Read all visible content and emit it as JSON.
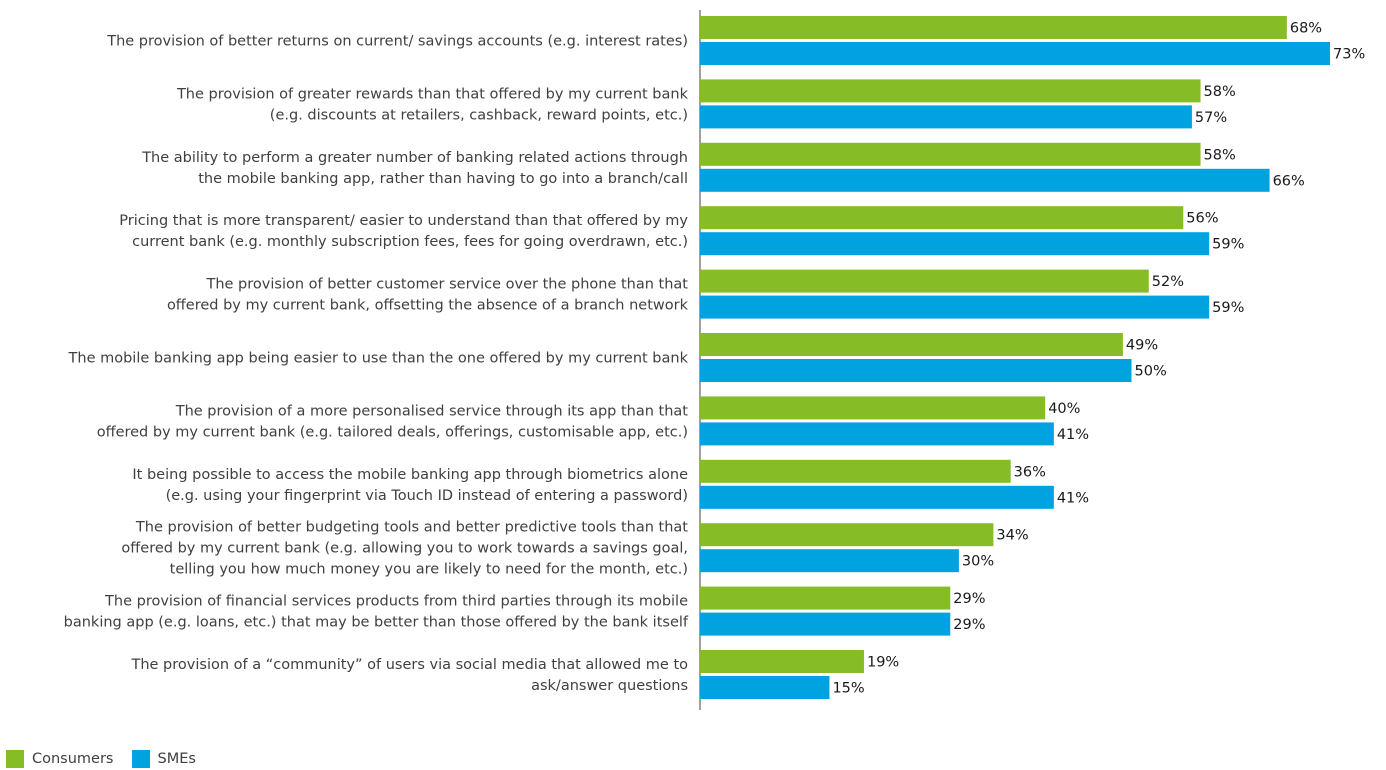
{
  "chart_data": {
    "type": "bar",
    "orientation": "horizontal",
    "value_suffix": "%",
    "xlim": [
      0,
      73
    ],
    "grid": false,
    "legend_position": "bottom-left",
    "categories": [
      [
        "The provision of better returns on current/ savings accounts (e.g. interest rates)"
      ],
      [
        "The provision of greater rewards than that offered by my current bank",
        "(e.g. discounts at retailers, cashback, reward points, etc.)"
      ],
      [
        "The ability to perform a greater number of banking related actions through",
        "the mobile banking app, rather than having to go into a branch/call"
      ],
      [
        "Pricing that is more transparent/ easier to understand than that offered by my",
        "current bank (e.g. monthly subscription fees, fees for going overdrawn, etc.)"
      ],
      [
        "The provision of better customer service over the phone than that",
        "offered by my current bank, offsetting the absence of a branch network"
      ],
      [
        "The mobile banking app being easier to use than the one offered by my current bank"
      ],
      [
        "The provision of a more personalised service through its app than that",
        "offered by my current bank (e.g. tailored deals, offerings, customisable app, etc.)"
      ],
      [
        "It being possible to access the mobile banking app through biometrics alone",
        "(e.g. using your fingerprint via Touch ID instead of entering a password)"
      ],
      [
        "The provision of better budgeting tools and better predictive tools than that",
        "offered by my current bank (e.g. allowing you to work towards a savings goal,",
        "telling you how much money you are likely to need for the month, etc.)"
      ],
      [
        "The provision of financial services products from third parties through its mobile",
        "banking app (e.g. loans, etc.) that may be better than those offered by the bank itself"
      ],
      [
        "The provision of a “community” of users via social media that allowed me to",
        "ask/answer questions"
      ]
    ],
    "series": [
      {
        "name": "Consumers",
        "color": "#86bc25",
        "values": [
          68,
          58,
          58,
          56,
          52,
          49,
          40,
          36,
          34,
          29,
          19
        ]
      },
      {
        "name": "SMEs",
        "color": "#00a3e0",
        "values": [
          73,
          57,
          66,
          59,
          59,
          50,
          41,
          41,
          30,
          29,
          15
        ]
      }
    ]
  }
}
